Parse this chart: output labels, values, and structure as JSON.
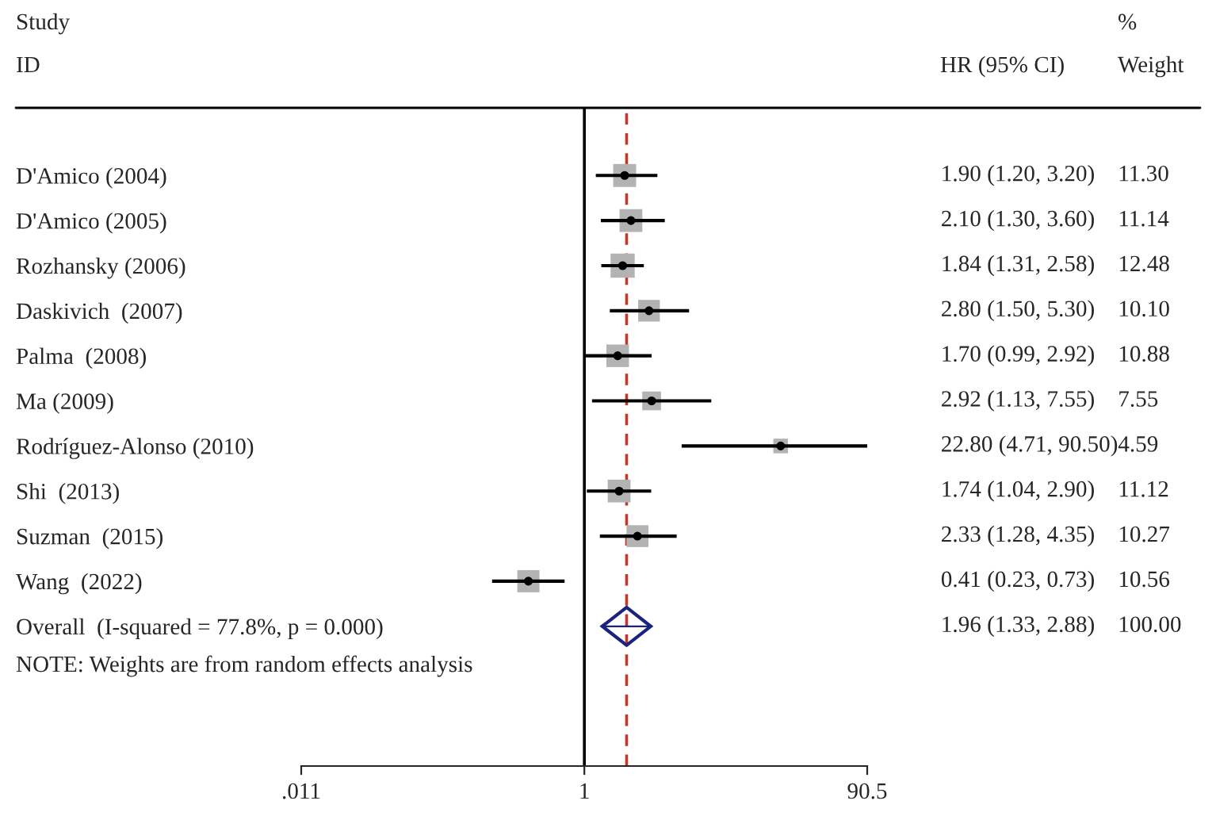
{
  "chart_data": {
    "type": "scatter",
    "orientation": "horizontal",
    "log": "x",
    "xlim": [
      0.011,
      90.5
    ],
    "xticks": [
      {
        "value": 0.011,
        "label": ".011"
      },
      1,
      90.5
    ],
    "grid": false,
    "legend": false,
    "categories": [
      "D'Amico (2004)",
      "D'Amico (2005)",
      "Rozhansky (2006)",
      "Daskivich  (2007)",
      "Palma  (2008)",
      "Ma (2009)",
      "Rodríguez-Alonso (2010)",
      "Shi  (2013)",
      "Suzman  (2015)",
      "Wang  (2022)",
      "Overall  (I-squared = 77.8%, p = 0.000)"
    ],
    "series": [
      {
        "marker": "square",
        "color": "#b3b3b3",
        "values": [
          1.9,
          2.1,
          1.84,
          2.8,
          1.7,
          2.92,
          22.8,
          1.74,
          2.33,
          0.41,
          null
        ],
        "errors": [
          [
            1.2,
            3.2
          ],
          [
            1.3,
            3.6
          ],
          [
            1.31,
            2.58
          ],
          [
            1.5,
            5.3
          ],
          [
            0.99,
            2.92
          ],
          [
            1.13,
            7.55
          ],
          [
            4.71,
            90.5
          ],
          [
            1.04,
            2.9
          ],
          [
            1.28,
            4.35
          ],
          [
            0.23,
            0.73
          ],
          null
        ],
        "sizes": [
          0.905,
          0.893,
          1,
          0.809,
          0.872,
          0.605,
          0.368,
          0.891,
          0.823,
          0.846,
          null
        ]
      },
      {
        "marker": "diamond",
        "color": "#1a237e",
        "values": [
          null,
          null,
          null,
          null,
          null,
          null,
          null,
          null,
          null,
          null,
          1.96
        ],
        "errors": [
          null,
          null,
          null,
          null,
          null,
          null,
          null,
          null,
          null,
          null,
          [
            1.33,
            2.88
          ]
        ]
      }
    ],
    "ref_lines": [
      {
        "axis": "x",
        "value": 1,
        "color": "#000000",
        "line_style": "solid"
      },
      {
        "axis": "x",
        "value": 1.96,
        "color": "#c0392b",
        "line_style": "dashed"
      }
    ],
    "annotations": [
      "Study",
      "%",
      "ID",
      "HR (95% CI)",
      "Weight",
      "1.90 (1.20, 3.20)",
      "2.10 (1.30, 3.60)",
      "1.84 (1.31, 2.58)",
      "2.80 (1.50, 5.30)",
      "1.70 (0.99, 2.92)",
      "2.92 (1.13, 7.55)",
      "22.80 (4.71, 90.50)",
      "1.74 (1.04, 2.90)",
      "2.33 (1.28, 4.35)",
      "0.41 (0.23, 0.73)",
      "1.96 (1.33, 2.88)",
      "11.30",
      "11.14",
      "12.48",
      "10.10",
      "10.88",
      "7.55",
      "4.59",
      "11.12",
      "10.27",
      "10.56",
      "100.00",
      "NOTE: Weights are from random effects analysis"
    ]
  }
}
